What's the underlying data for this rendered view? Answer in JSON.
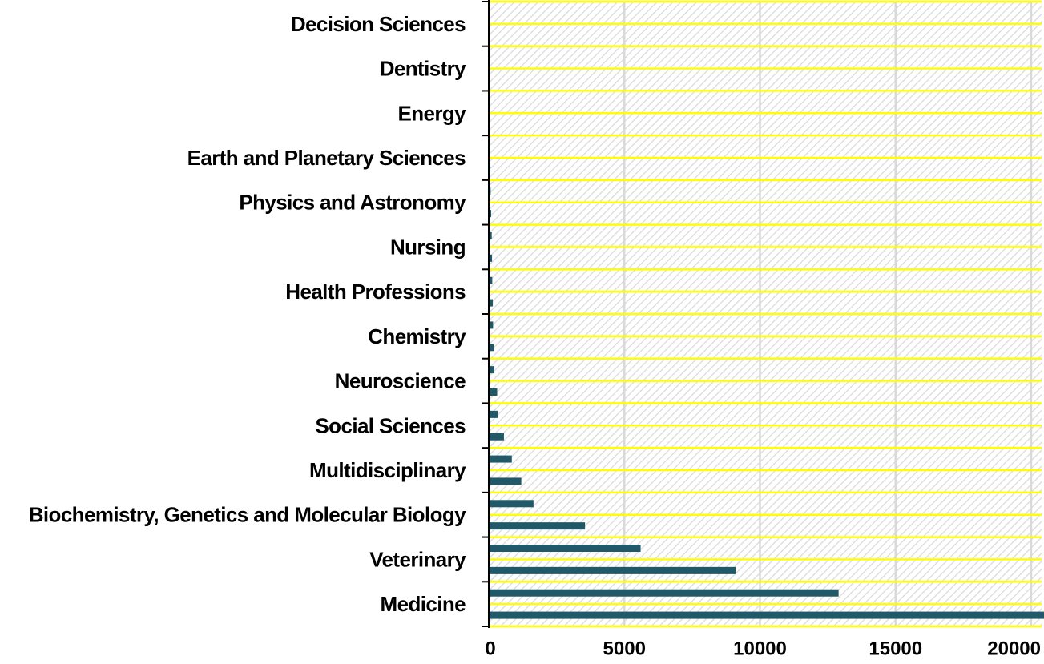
{
  "chart_data": {
    "type": "bar",
    "orientation": "horizontal",
    "title": "",
    "xlabel": "",
    "ylabel": "",
    "categories": [
      "Medicine",
      "",
      "Veterinary",
      "",
      "Biochemistry, Genetics and Molecular Biology",
      "",
      "Multidisciplinary",
      "",
      "Social Sciences",
      "",
      "Neuroscience",
      "",
      "Chemistry",
      "",
      "Health Professions",
      "",
      "Nursing",
      "",
      "Physics and Astronomy",
      "",
      "Earth and Planetary Sciences",
      "",
      "Energy",
      "",
      "Dentistry",
      "",
      "Decision Sciences",
      ""
    ],
    "values": [
      20600,
      12900,
      9100,
      5600,
      3550,
      1650,
      1200,
      850,
      560,
      330,
      310,
      200,
      190,
      160,
      150,
      130,
      120,
      110,
      90,
      70,
      60,
      40,
      30,
      20,
      20,
      10,
      10,
      10
    ],
    "xlim": [
      0,
      21000
    ],
    "xticks": [
      "0",
      "5000",
      "10000",
      "15000",
      "20000"
    ],
    "xtick_values": [
      0,
      5000,
      10000,
      15000,
      20000
    ],
    "grid": true,
    "legend": "none",
    "colors": {
      "bar": "#215968",
      "row_border": "#ffff00",
      "hatch": "#d9d9d9",
      "gridline": "#d9d9d9",
      "axis": "#000000"
    }
  }
}
